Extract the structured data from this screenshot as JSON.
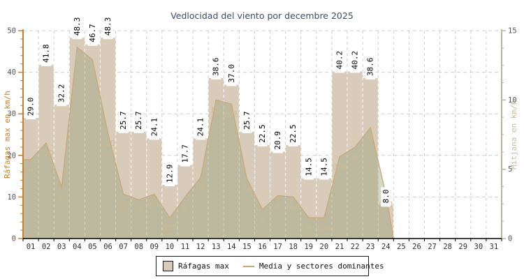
{
  "title": {
    "text": "Vedlocidad del viento por decembre 2025"
  },
  "axis_left": {
    "title": "Ráfagas max en km/h",
    "min": 0,
    "max": 50,
    "major_ticks": [
      0,
      10,
      20,
      30,
      40,
      50
    ],
    "minor_step": 2
  },
  "axis_right": {
    "title": "Mitjana en km/h",
    "min": 0,
    "max": 15,
    "major_ticks": [
      0,
      5,
      10,
      15
    ],
    "minor_step": 1.25
  },
  "axis_x": {
    "labels": [
      "01",
      "02",
      "03",
      "04",
      "05",
      "06",
      "07",
      "08",
      "09",
      "10",
      "11",
      "12",
      "13",
      "14",
      "15",
      "16",
      "17",
      "18",
      "19",
      "20",
      "21",
      "22",
      "23",
      "24",
      "25",
      "26",
      "27",
      "28",
      "29",
      "30",
      "31"
    ]
  },
  "legend": {
    "items": [
      {
        "label": "Ráfagas max",
        "swatch": "box"
      },
      {
        "label": "Media y sectores dominantes",
        "swatch": "line"
      }
    ]
  },
  "colors": {
    "bar": "#d9cbba",
    "area_fill": "#96a078",
    "area_opacity": 0.42,
    "media_line": "#c8a878",
    "grid": "#cdcdcd",
    "grid_on_bar": "#ffffff",
    "axis_left": "#c8802e",
    "axis_right": "#bdb499",
    "axis_x": "#000000",
    "tick_label": "#555555",
    "x_label": "#2f2f2f",
    "title_color": "#3e4c68",
    "sector_label": "#c9bb96",
    "value_label": "#000000"
  },
  "chart_data": {
    "type": "bar",
    "subtype": "bar-plus-area-line-dual-axis",
    "title": "Vedlocidad del viento por decembre 2025",
    "categories": [
      "01",
      "02",
      "03",
      "04",
      "05",
      "06",
      "07",
      "08",
      "09",
      "10",
      "11",
      "12",
      "13",
      "14",
      "15",
      "16",
      "17",
      "18",
      "19",
      "20",
      "21",
      "22",
      "23",
      "24",
      "25",
      "26",
      "27",
      "28",
      "29",
      "30",
      "31"
    ],
    "left_axis": {
      "label": "Ráfagas max en km/h",
      "range": [
        0,
        50
      ]
    },
    "right_axis": {
      "label": "Mitjana en km/h",
      "range": [
        0,
        15
      ]
    },
    "grid": true,
    "legend_position": "bottom-center",
    "series": [
      {
        "name": "Ráfagas max",
        "type": "bar",
        "axis": "left",
        "values": [
          29.0,
          41.8,
          32.2,
          48.3,
          46.7,
          48.3,
          25.7,
          25.7,
          24.1,
          12.9,
          17.7,
          24.1,
          38.6,
          37.0,
          25.7,
          22.5,
          20.9,
          22.5,
          14.5,
          14.5,
          40.2,
          40.2,
          38.6,
          8.0,
          null,
          null,
          null,
          null,
          null,
          null,
          null
        ]
      },
      {
        "name": "Media y sectores dominantes",
        "type": "area-line",
        "axis": "right",
        "values": [
          5.7,
          6.9,
          3.7,
          13.8,
          12.9,
          7.6,
          3.2,
          2.8,
          3.2,
          1.5,
          3.0,
          4.4,
          10.0,
          9.7,
          4.3,
          2.1,
          3.1,
          3.0,
          1.5,
          1.5,
          5.9,
          6.6,
          8.0,
          3.2,
          null,
          null,
          null,
          null,
          null,
          null,
          null
        ],
        "sectors": [
          "NE",
          "OSO",
          "NO",
          "O",
          "O",
          "OSO",
          "OSO",
          "NO",
          "OSO",
          "NNE",
          "N",
          "NE",
          "NE",
          "ENE",
          "SO",
          "O",
          "N",
          "NNE",
          "N",
          "ONO",
          "OSO",
          "O",
          "O",
          "ONO",
          null,
          null,
          null,
          null,
          null,
          null,
          null
        ]
      }
    ]
  }
}
